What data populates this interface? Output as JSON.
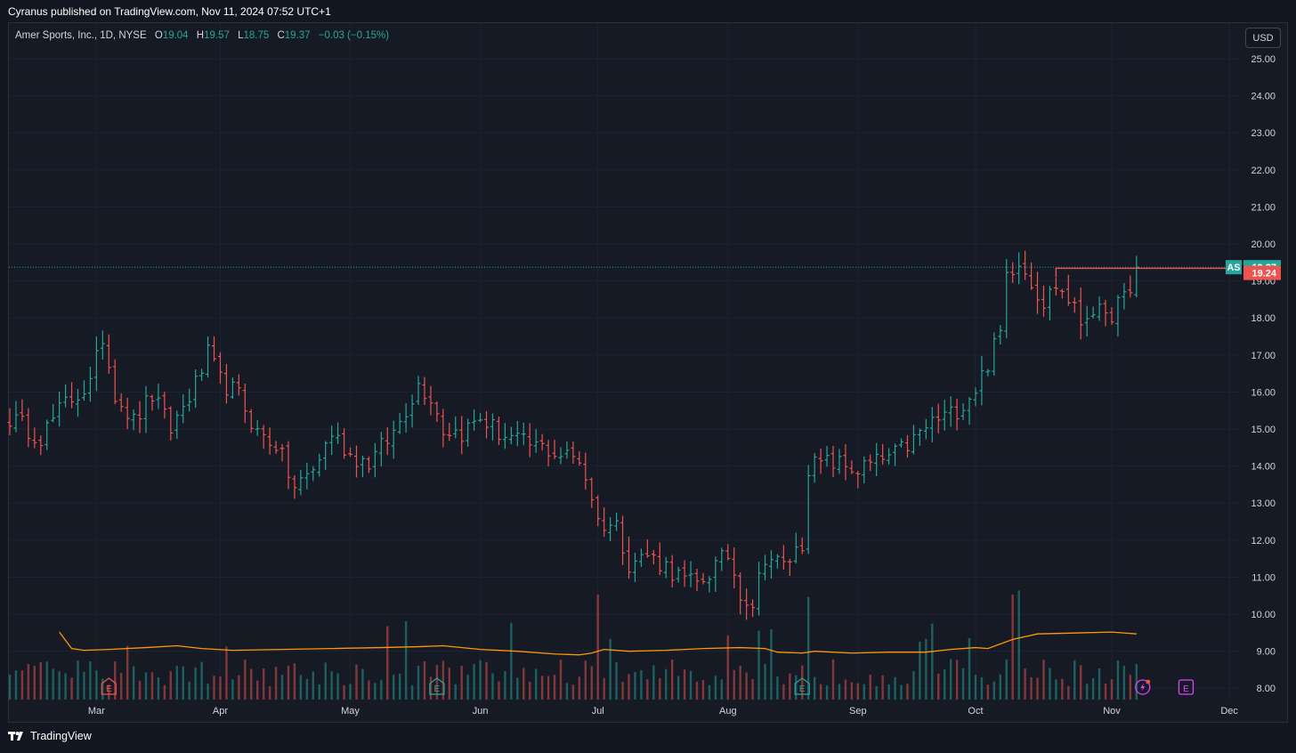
{
  "header": {
    "published_by": "Cyranus published on TradingView.com, Nov 11, 2024 07:52 UTC+1"
  },
  "legend": {
    "symbol": "Amer Sports, Inc., 1D, NYSE",
    "open_label": "O",
    "open": "19.04",
    "high_label": "H",
    "high": "19.57",
    "low_label": "L",
    "low": "18.75",
    "close_label": "C",
    "close": "19.37",
    "change": "−0.03 (−0.15%)"
  },
  "currency_button": "USD",
  "footer": {
    "brand": "TradingView",
    "logo_icon": "tradingview-logo-icon"
  },
  "colors": {
    "up": "#26a69a",
    "down": "#ef5350",
    "background": "#161a25",
    "grid": "#1f2330",
    "volume_ma": "#ff9800"
  },
  "chart_data": {
    "type": "ohlc-bar",
    "symbol": "AS",
    "timeframe": "1D",
    "y_range": [
      8.0,
      25.0
    ],
    "y_ticks": [
      "25.00",
      "24.00",
      "23.00",
      "22.00",
      "21.00",
      "20.00",
      "19.00",
      "18.00",
      "17.00",
      "16.00",
      "15.00",
      "14.00",
      "13.00",
      "12.00",
      "11.00",
      "10.00",
      "9.00",
      "8.00"
    ],
    "x_labels": [
      {
        "label": "Mar",
        "day": 14
      },
      {
        "label": "Apr",
        "day": 34
      },
      {
        "label": "May",
        "day": 55
      },
      {
        "label": "Jun",
        "day": 76
      },
      {
        "label": "Jul",
        "day": 95
      },
      {
        "label": "Aug",
        "day": 116
      },
      {
        "label": "Sep",
        "day": 137
      },
      {
        "label": "Oct",
        "day": 156
      },
      {
        "label": "Nov",
        "day": 178
      },
      {
        "label": "Dec",
        "day": 197
      }
    ],
    "last_price_label": {
      "symbol": "AS",
      "value": 19.37
    },
    "alert_line": {
      "value": 19.24,
      "from_day": 169
    },
    "earnings_markers": [
      {
        "label": "E",
        "day": 16,
        "type": "past-miss"
      },
      {
        "label": "E",
        "day": 69,
        "type": "past-beat"
      },
      {
        "label": "E",
        "day": 128,
        "type": "past-beat"
      },
      {
        "label": "E",
        "day": 190,
        "type": "upcoming"
      }
    ],
    "event_icons": [
      {
        "name": "lightning-event-icon",
        "day": 183
      }
    ],
    "series": [
      {
        "name": "AS",
        "trend_close": [
          [
            0,
            15.3
          ],
          [
            5,
            14.8
          ],
          [
            9,
            15.7
          ],
          [
            13,
            16.2
          ],
          [
            15,
            17.5
          ],
          [
            17,
            16.0
          ],
          [
            20,
            15.2
          ],
          [
            23,
            15.9
          ],
          [
            26,
            15.0
          ],
          [
            30,
            16.2
          ],
          [
            32,
            17.0
          ],
          [
            34,
            16.3
          ],
          [
            37,
            15.9
          ],
          [
            40,
            14.9
          ],
          [
            43,
            14.6
          ],
          [
            46,
            13.4
          ],
          [
            49,
            13.9
          ],
          [
            52,
            14.9
          ],
          [
            55,
            14.3
          ],
          [
            58,
            14.1
          ],
          [
            62,
            14.9
          ],
          [
            66,
            16.2
          ],
          [
            68,
            15.9
          ],
          [
            70,
            15.0
          ],
          [
            73,
            14.9
          ],
          [
            76,
            15.3
          ],
          [
            79,
            14.9
          ],
          [
            83,
            14.6
          ],
          [
            86,
            14.5
          ],
          [
            89,
            14.3
          ],
          [
            92,
            14.2
          ],
          [
            94,
            13.2
          ],
          [
            95,
            12.5
          ],
          [
            98,
            12.4
          ],
          [
            100,
            11.4
          ],
          [
            103,
            11.6
          ],
          [
            106,
            11.3
          ],
          [
            109,
            10.9
          ],
          [
            111,
            10.8
          ],
          [
            114,
            11.3
          ],
          [
            116,
            11.6
          ],
          [
            118,
            10.6
          ],
          [
            120,
            10.3
          ],
          [
            122,
            11.6
          ],
          [
            125,
            11.3
          ],
          [
            127,
            11.7
          ],
          [
            128,
            11.9
          ],
          [
            129,
            14.0
          ],
          [
            133,
            14.1
          ],
          [
            137,
            13.9
          ],
          [
            140,
            14.1
          ],
          [
            143,
            14.3
          ],
          [
            146,
            14.7
          ],
          [
            149,
            15.2
          ],
          [
            152,
            15.4
          ],
          [
            154,
            15.7
          ],
          [
            156,
            16.1
          ],
          [
            158,
            16.8
          ],
          [
            160,
            17.6
          ],
          [
            161,
            19.2
          ],
          [
            163,
            19.6
          ],
          [
            165,
            19.0
          ],
          [
            167,
            18.4
          ],
          [
            169,
            18.9
          ],
          [
            171,
            18.5
          ],
          [
            173,
            17.9
          ],
          [
            175,
            18.3
          ],
          [
            177,
            17.9
          ],
          [
            179,
            18.4
          ],
          [
            181,
            18.6
          ],
          [
            182,
            19.37
          ]
        ]
      }
    ],
    "volume": {
      "range": [
        0,
        1.0
      ],
      "ma_line": [
        [
          8,
          0.74
        ],
        [
          10,
          0.56
        ],
        [
          12,
          0.54
        ],
        [
          16,
          0.55
        ],
        [
          22,
          0.57
        ],
        [
          27,
          0.59
        ],
        [
          31,
          0.56
        ],
        [
          36,
          0.54
        ],
        [
          44,
          0.55
        ],
        [
          52,
          0.56
        ],
        [
          60,
          0.57
        ],
        [
          66,
          0.58
        ],
        [
          70,
          0.59
        ],
        [
          76,
          0.55
        ],
        [
          82,
          0.53
        ],
        [
          88,
          0.5
        ],
        [
          92,
          0.49
        ],
        [
          94,
          0.51
        ],
        [
          96,
          0.55
        ],
        [
          100,
          0.53
        ],
        [
          106,
          0.54
        ],
        [
          112,
          0.56
        ],
        [
          118,
          0.57
        ],
        [
          122,
          0.56
        ],
        [
          124,
          0.52
        ],
        [
          128,
          0.51
        ],
        [
          130,
          0.53
        ],
        [
          136,
          0.51
        ],
        [
          142,
          0.52
        ],
        [
          148,
          0.52
        ],
        [
          152,
          0.55
        ],
        [
          156,
          0.57
        ],
        [
          158,
          0.56
        ],
        [
          162,
          0.66
        ],
        [
          166,
          0.72
        ],
        [
          172,
          0.73
        ],
        [
          178,
          0.74
        ],
        [
          182,
          0.72
        ]
      ]
    }
  }
}
